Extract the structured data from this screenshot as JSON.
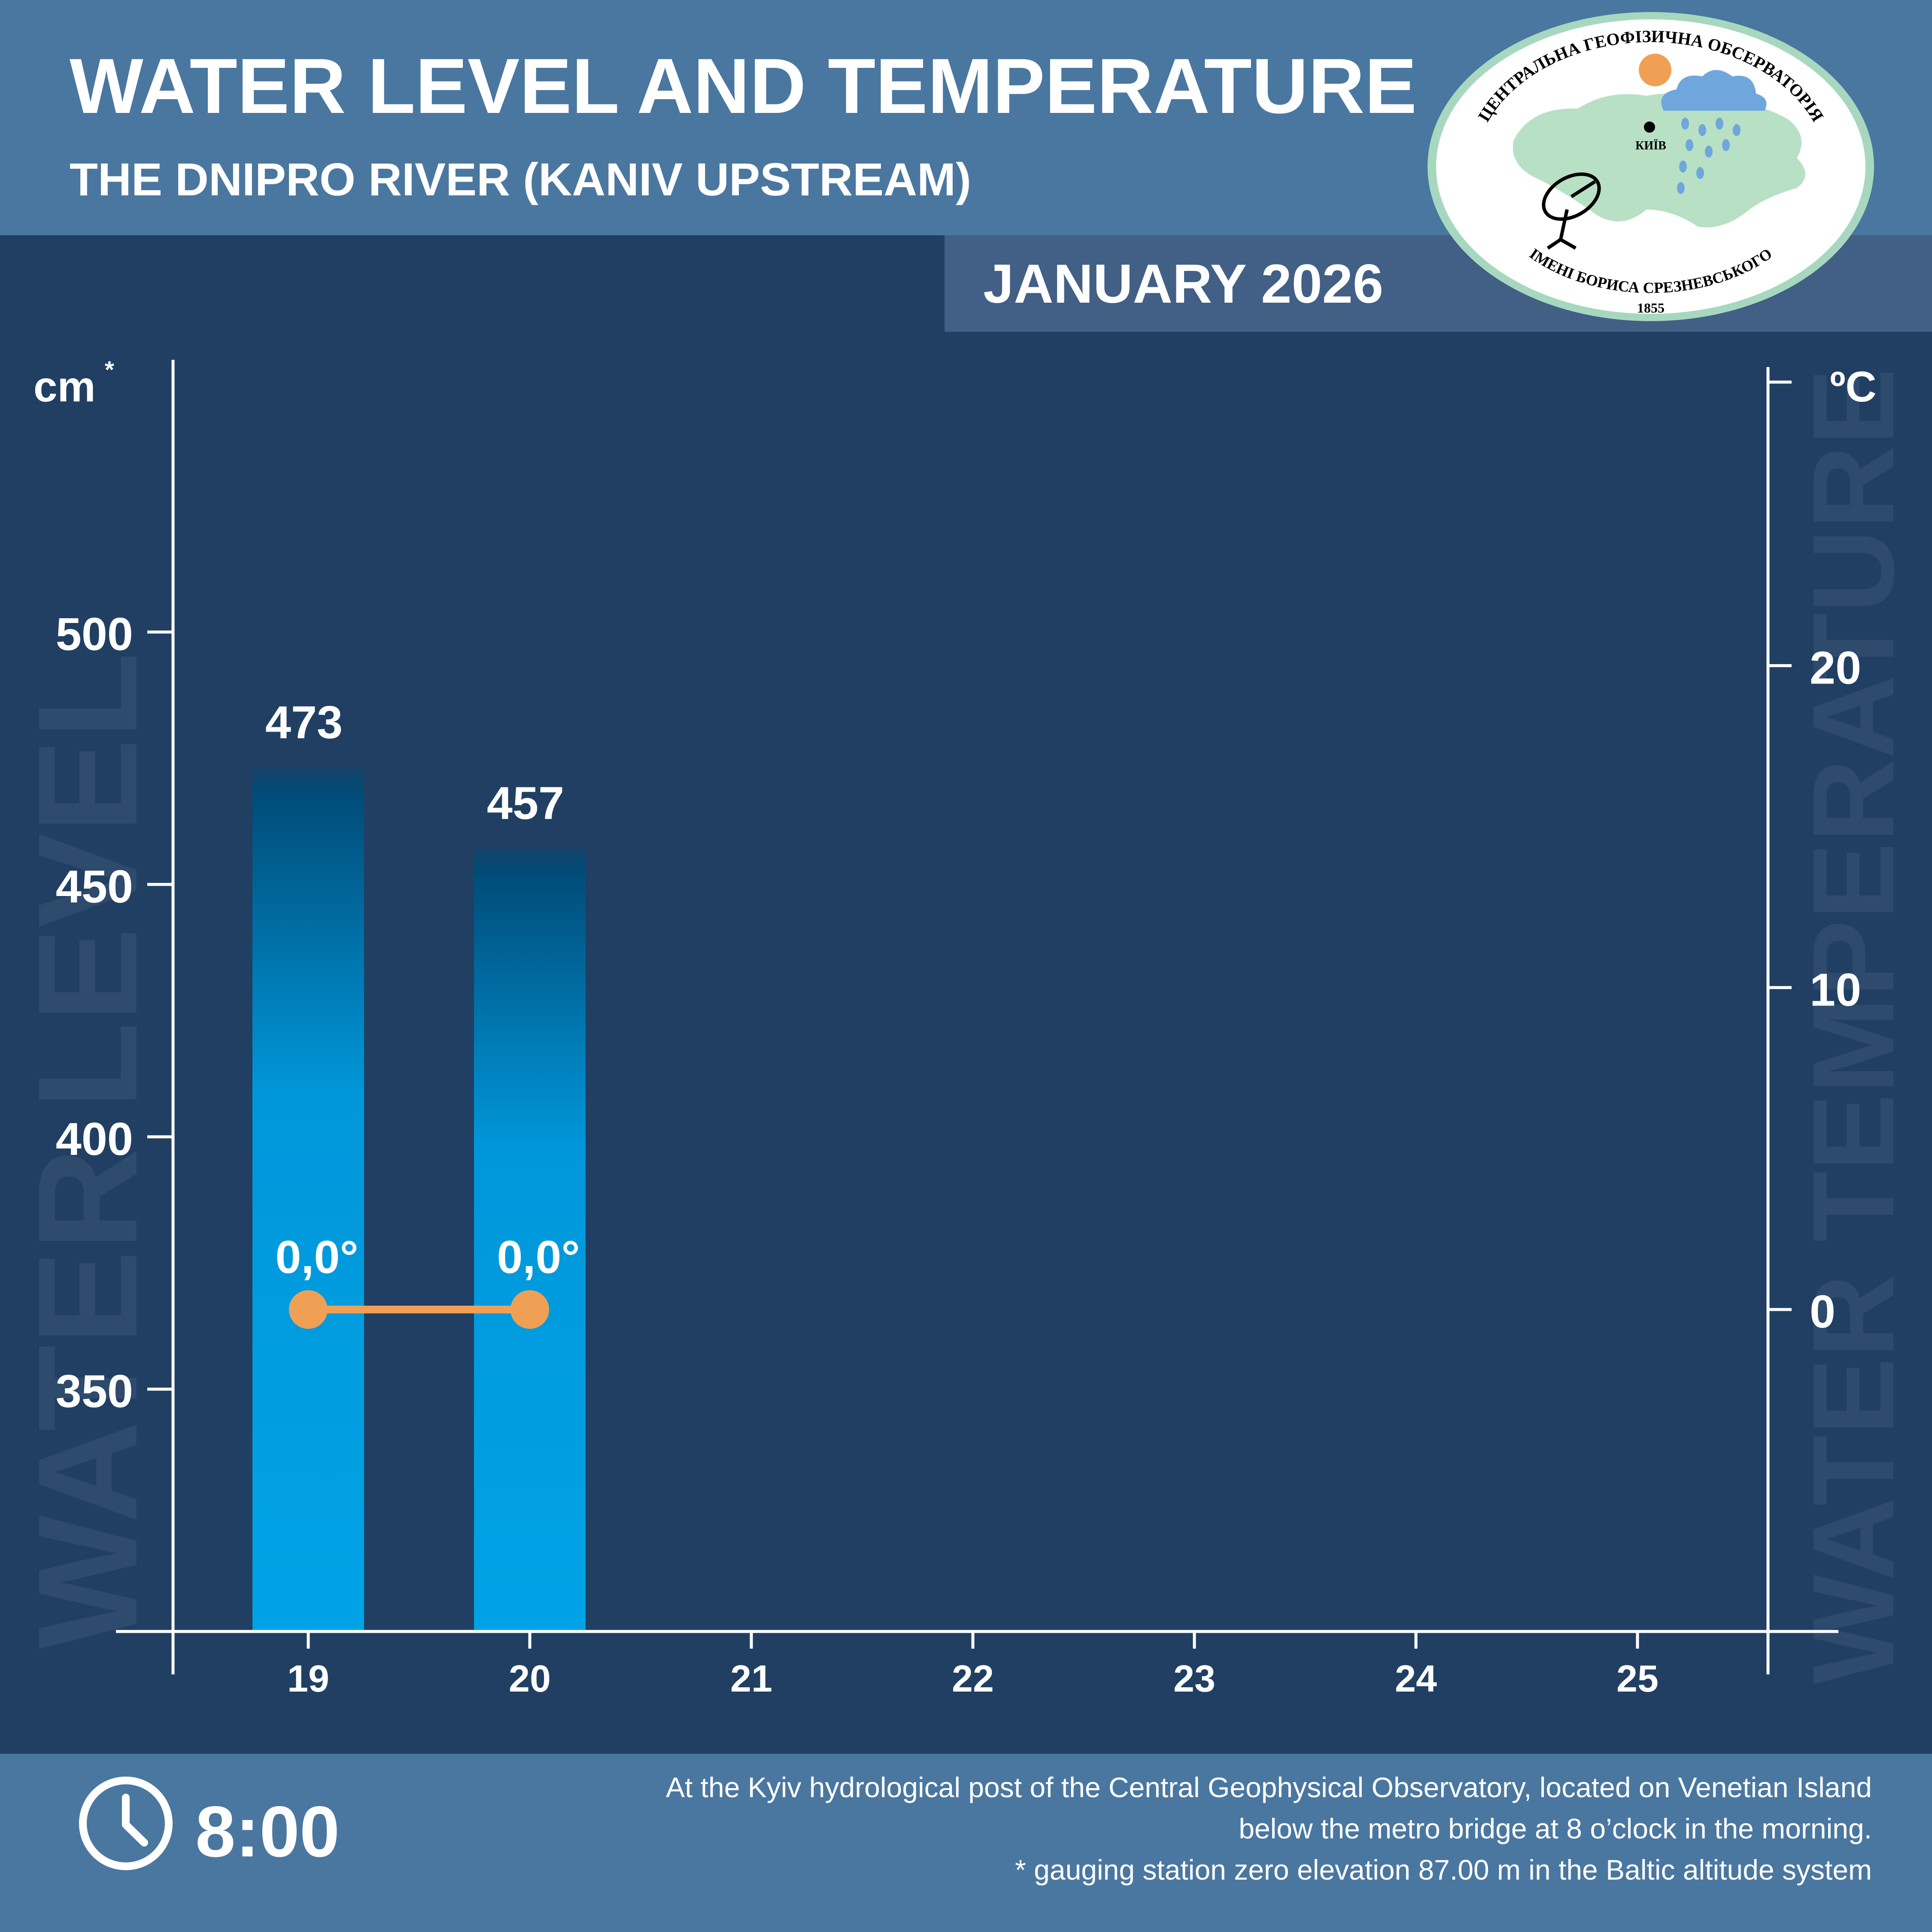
{
  "header": {
    "title": "WATER LEVEL AND TEMPERATURE",
    "subtitle": "THE DNIPRO RIVER (KANIV UPSTREAM)",
    "month": "JANUARY 2026"
  },
  "logo": {
    "text_top": "ЦЕНТРАЛЬНА ГЕОФІЗИЧНА ОБСЕРВАТОРІЯ",
    "text_bottom": "ІМЕНІ БОРИСА СРЕЗНЕВСЬКОГО",
    "year": "1855",
    "city": "КИЇВ"
  },
  "chart_data": {
    "type": "bar",
    "categories": [
      "19",
      "20",
      "21",
      "22",
      "23",
      "24",
      "25"
    ],
    "series": [
      {
        "values": [
          473,
          457,
          null,
          null,
          null,
          null,
          null
        ]
      },
      {
        "values": [
          0.0,
          0.0,
          null,
          null,
          null,
          null,
          null
        ]
      }
    ],
    "level_labels": [
      "473",
      "457"
    ],
    "temp_labels": [
      "0,0°",
      "0,0°"
    ],
    "left_axis": {
      "unit": "cm",
      "unit_mark": "*",
      "ticks": [
        "350",
        "400",
        "450",
        "500"
      ],
      "watermark": "WATER LEVEL",
      "ylim": [
        302,
        565
      ]
    },
    "right_axis": {
      "unit": "ºC",
      "ticks": [
        "0",
        "10",
        "20"
      ],
      "watermark": "WATER TEMPERATURE",
      "ylim": [
        -10,
        29.5
      ]
    },
    "colors": {
      "bar_top": "#004c78",
      "bar_bottom": "#00a3e6",
      "temperature": "#f0a055",
      "axis": "#ffffff",
      "watermark": "#2e4b6d"
    }
  },
  "footer": {
    "time": "8:00",
    "note_lines": [
      "At the Kyiv hydrological post of the Central Geophysical Observatory, located on Venetian Island",
      "below the metro bridge  at 8 o’clock in the morning.",
      "* gauging station zero elevation 87.00 m in the Baltic altitude system"
    ]
  }
}
